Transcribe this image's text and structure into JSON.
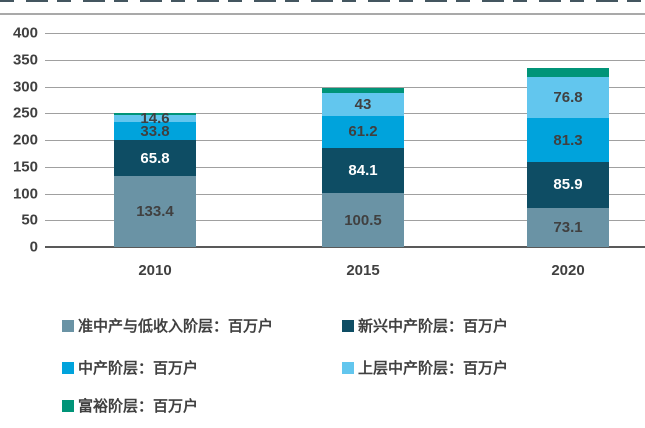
{
  "chart_data": {
    "type": "bar",
    "stacked": true,
    "title": "",
    "categories": [
      "2010",
      "2015",
      "2020"
    ],
    "series": [
      {
        "name": "准中产与低收入阶层：百万户",
        "color": "#6A93A5",
        "label_color": "#404040",
        "values": [
          133.4,
          100.5,
          73.1
        ],
        "data_labels": [
          "133.4",
          "100.5",
          "73.1"
        ]
      },
      {
        "name": "新兴中产阶层：百万户",
        "color": "#0E4D64",
        "label_color": "#FFFFFF",
        "values": [
          65.8,
          84.1,
          85.9
        ],
        "data_labels": [
          "65.8",
          "84.1",
          "85.9"
        ]
      },
      {
        "name": "中产阶层：百万户",
        "color": "#00A3DC",
        "label_color": "#404040",
        "values": [
          33.8,
          61.2,
          81.3
        ],
        "data_labels": [
          "33.8",
          "61.2",
          "81.3"
        ]
      },
      {
        "name": "上层中产阶层：百万户",
        "color": "#62C6EE",
        "label_color": "#404040",
        "values": [
          14.6,
          43,
          76.8
        ],
        "data_labels": [
          "14.6",
          "43",
          "76.8"
        ]
      },
      {
        "name": "富裕阶层：百万户",
        "color": "#009478",
        "label_color": "#404040",
        "values": [
          2.5,
          8,
          17
        ],
        "data_labels": [
          "",
          "",
          ""
        ]
      }
    ],
    "y_axis": {
      "min": 0,
      "max": 400,
      "tick_interval": 50,
      "tick_labels": [
        "0",
        "50",
        "100",
        "150",
        "200",
        "250",
        "300",
        "350",
        "400"
      ]
    },
    "legend_position": "bottom",
    "grid": "horizontal",
    "unit": "百万户"
  }
}
